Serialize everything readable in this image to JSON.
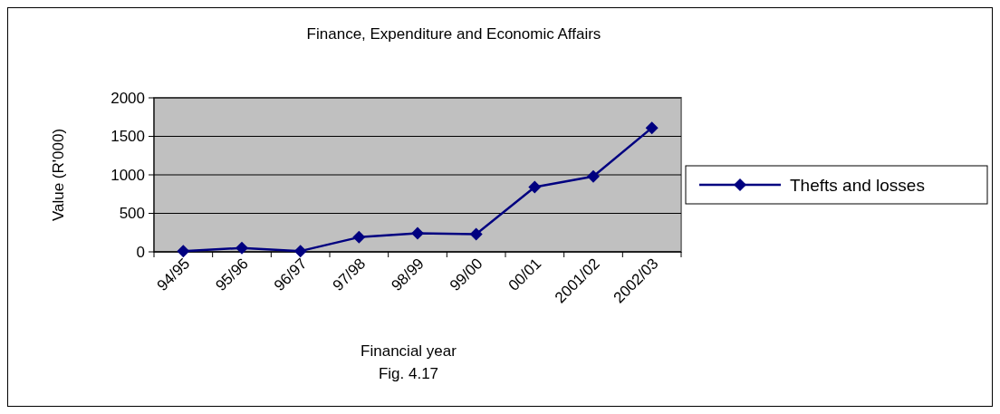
{
  "chart_data": {
    "type": "line",
    "title": "Finance, Expenditure and Economic Affairs",
    "xlabel": "Financial year",
    "ylabel": "Value (R'000)",
    "annotations": [
      "Fig. 4.17"
    ],
    "categories": [
      "94/95",
      "95/96",
      "96/97",
      "97/98",
      "98/99",
      "99/00",
      "00/01",
      "2001/02",
      "2002/03"
    ],
    "series": [
      {
        "name": "Thefts and losses",
        "color": "#000080",
        "values": [
          10,
          50,
          10,
          190,
          240,
          230,
          840,
          980,
          1610
        ]
      }
    ],
    "ylim": [
      0,
      2000
    ],
    "yticks": [
      0,
      500,
      1000,
      1500,
      2000
    ],
    "grid": "y",
    "legend": "right",
    "marker": "diamond",
    "line_style": "solid"
  }
}
